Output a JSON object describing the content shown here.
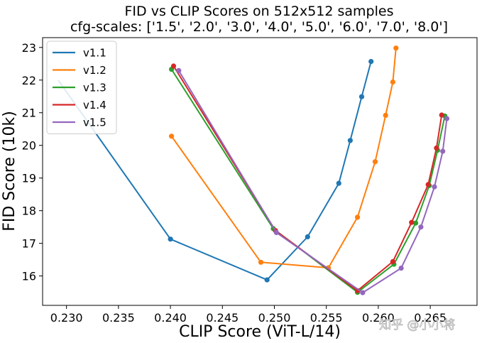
{
  "chart_data": {
    "type": "line",
    "title": "FID vs CLIP Scores on 512x512 samples",
    "subtitle": "cfg-scales: ['1.5', '2.0', '3.0', '4.0', '5.0', '6.0', '7.0', '8.0']",
    "xlabel": "CLIP Score (ViT-L/14)",
    "ylabel": "FID Score (10k)",
    "xlim": [
      0.2277,
      0.2695
    ],
    "ylim": [
      15.1,
      23.3
    ],
    "xticks": [
      "0.230",
      "0.235",
      "0.240",
      "0.245",
      "0.250",
      "0.255",
      "0.260",
      "0.265"
    ],
    "yticks": [
      "16",
      "17",
      "18",
      "19",
      "20",
      "21",
      "22",
      "23"
    ],
    "legend_position": "top-left",
    "series": [
      {
        "name": "v1.1",
        "color": "#1f77b4",
        "x": [
          0.2292,
          0.24,
          0.2493,
          0.2532,
          0.2562,
          0.2573,
          0.2584,
          0.2593
        ],
        "y": [
          22.0,
          17.13,
          15.88,
          17.2,
          18.84,
          20.15,
          21.49,
          22.57
        ]
      },
      {
        "name": "v1.2",
        "color": "#ff7f0e",
        "x": [
          0.2401,
          0.2487,
          0.2552,
          0.258,
          0.2597,
          0.2607,
          0.2614,
          0.2617
        ],
        "y": [
          20.28,
          16.42,
          16.25,
          17.8,
          19.5,
          20.92,
          21.94,
          22.98
        ]
      },
      {
        "name": "v1.3",
        "color": "#2ca02c",
        "x": [
          0.2401,
          0.2499,
          0.258,
          0.2615,
          0.2636,
          0.2649,
          0.2657,
          0.2664
        ],
        "y": [
          22.33,
          17.45,
          15.5,
          16.36,
          17.62,
          18.77,
          19.85,
          20.9
        ]
      },
      {
        "name": "v1.4",
        "color": "#d62728",
        "x": [
          0.2403,
          0.2501,
          0.258,
          0.2614,
          0.2632,
          0.2648,
          0.2656,
          0.2661
        ],
        "y": [
          22.43,
          17.39,
          15.55,
          16.44,
          17.64,
          18.8,
          19.92,
          20.93
        ]
      },
      {
        "name": "v1.5",
        "color": "#9467bd",
        "x": [
          0.2408,
          0.2502,
          0.2585,
          0.2622,
          0.2641,
          0.2654,
          0.2662,
          0.2666
        ],
        "y": [
          22.29,
          17.33,
          15.49,
          16.24,
          17.5,
          18.73,
          19.82,
          20.82
        ]
      }
    ]
  },
  "watermark": {
    "text": "知乎 @小小将"
  }
}
